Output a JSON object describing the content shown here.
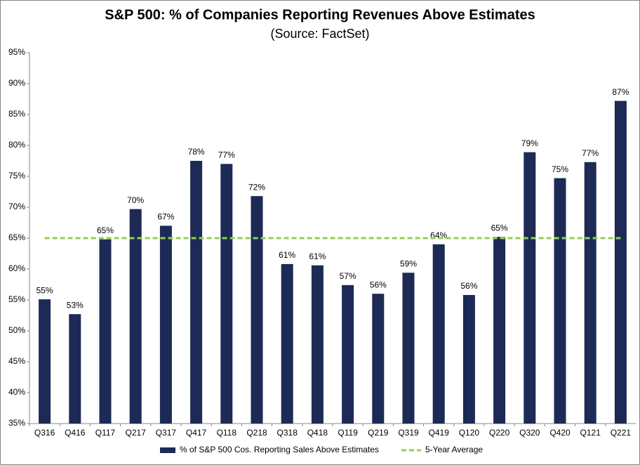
{
  "chart_data": {
    "type": "bar",
    "title": "S&P 500: % of Companies Reporting Revenues Above Estimates",
    "subtitle": "(Source: FactSet)",
    "categories": [
      "Q316",
      "Q416",
      "Q117",
      "Q217",
      "Q317",
      "Q417",
      "Q118",
      "Q218",
      "Q318",
      "Q418",
      "Q119",
      "Q219",
      "Q319",
      "Q419",
      "Q120",
      "Q220",
      "Q320",
      "Q420",
      "Q121",
      "Q221"
    ],
    "series": [
      {
        "name": "% of S&P 500 Cos. Reporting Sales Above Estimates",
        "type": "bar",
        "color": "#1c2a55",
        "values": [
          55.1,
          52.7,
          64.8,
          69.7,
          67.0,
          77.5,
          77.0,
          71.8,
          60.8,
          60.6,
          57.4,
          56.0,
          59.4,
          64.0,
          55.8,
          65.2,
          78.9,
          74.7,
          77.3,
          87.2
        ],
        "value_labels": [
          "55%",
          "53%",
          "65%",
          "70%",
          "67%",
          "78%",
          "77%",
          "72%",
          "61%",
          "61%",
          "57%",
          "56%",
          "59%",
          "64%",
          "56%",
          "65%",
          "79%",
          "75%",
          "77%",
          "87%"
        ]
      },
      {
        "name": "5-Year Average",
        "type": "line",
        "color": "#92d050",
        "dashed": true,
        "values": [
          65,
          65,
          65,
          65,
          65,
          65,
          65,
          65,
          65,
          65,
          65,
          65,
          65,
          65,
          65,
          65,
          65,
          65,
          65,
          65
        ]
      }
    ],
    "ylim": [
      35,
      95
    ],
    "yticks": [
      {
        "value": 35,
        "label": "35%"
      },
      {
        "value": 40,
        "label": "40%"
      },
      {
        "value": 45,
        "label": "45%"
      },
      {
        "value": 50,
        "label": "50%"
      },
      {
        "value": 55,
        "label": "55%"
      },
      {
        "value": 60,
        "label": "60%"
      },
      {
        "value": 65,
        "label": "65%"
      },
      {
        "value": 70,
        "label": "70%"
      },
      {
        "value": 75,
        "label": "75%"
      },
      {
        "value": 80,
        "label": "80%"
      },
      {
        "value": 85,
        "label": "85%"
      },
      {
        "value": 90,
        "label": "90%"
      },
      {
        "value": 95,
        "label": "95%"
      }
    ],
    "grid": false,
    "legend": "bottom"
  }
}
